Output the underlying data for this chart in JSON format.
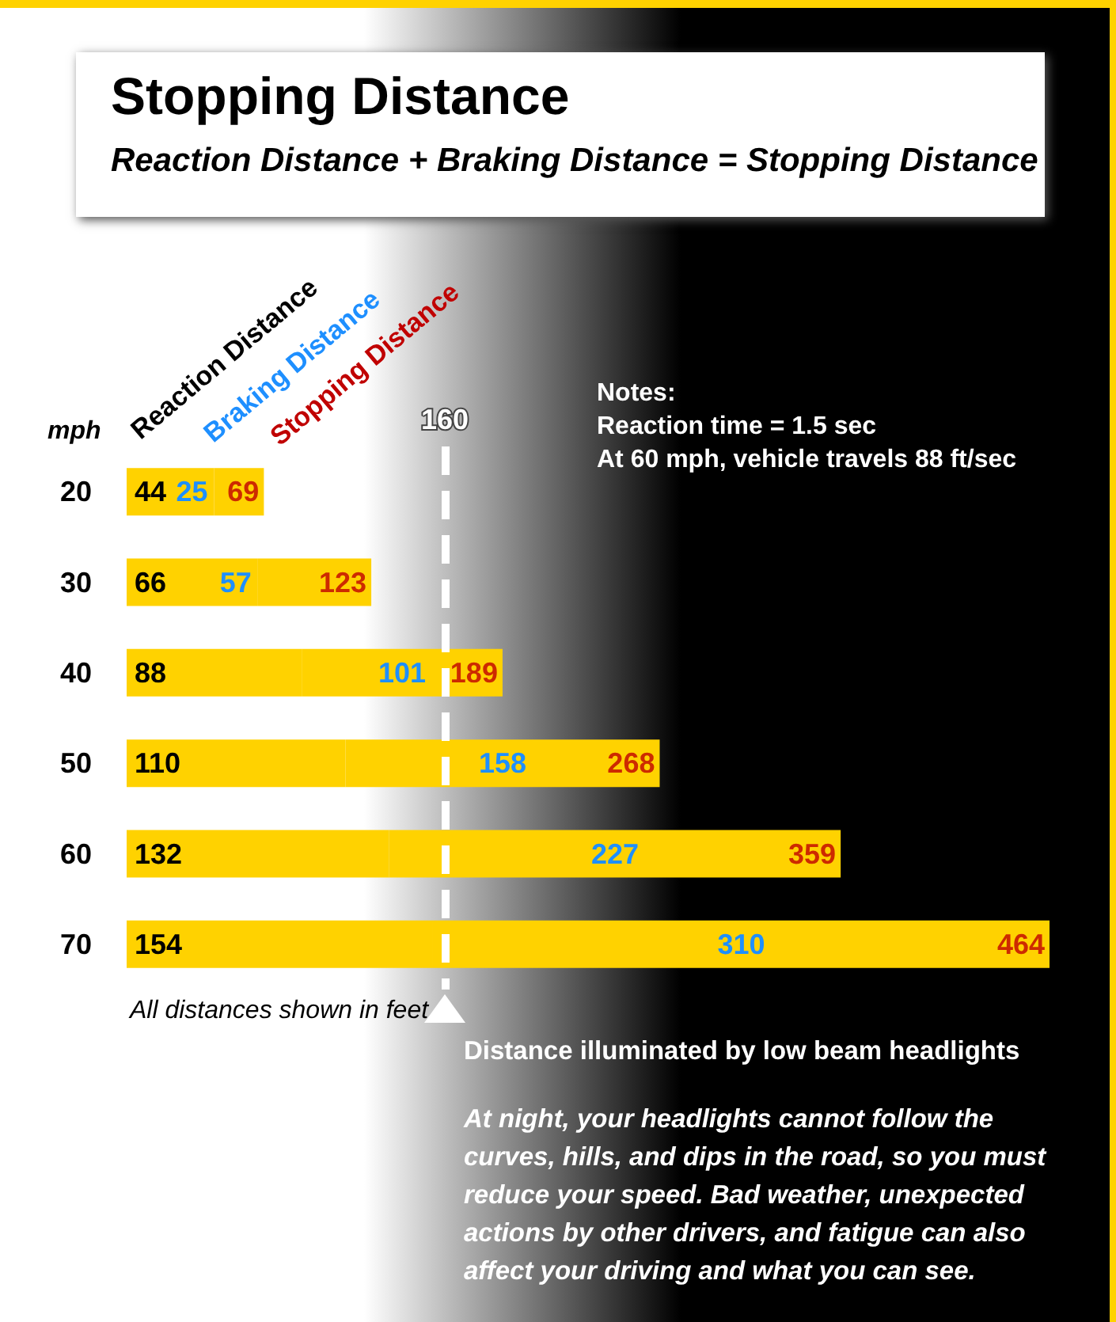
{
  "chart_data": {
    "type": "bar",
    "orientation": "horizontal",
    "stacked": true,
    "title": "Stopping Distance",
    "subtitle": "Reaction Distance + Braking Distance = Stopping Distance",
    "ylabel": "mph",
    "categories": [
      "20",
      "30",
      "40",
      "50",
      "60",
      "70"
    ],
    "series": [
      {
        "color": "#ffd200",
        "values": [
          44,
          66,
          88,
          110,
          132,
          154
        ]
      },
      {
        "color": "#ffd200",
        "values": [
          25,
          57,
          101,
          158,
          227,
          310
        ]
      }
    ],
    "data_labels": true,
    "totals": [
      "69",
      "123",
      "189",
      "268",
      "359",
      "464"
    ],
    "ref_lines": [
      {
        "axis": "x",
        "value": 160,
        "label": "160",
        "color": "#ffffff",
        "line_style": "dashed"
      }
    ],
    "annotations": [
      "Reaction Distance",
      "Braking Distance",
      "Stopping Distance",
      "Notes:\nReaction time = 1.5 sec\nAt 60 mph, vehicle travels 88 ft/sec",
      "All distances shown in feet",
      "Distance illuminated by low beam headlights",
      "At night, your headlights cannot follow the curves, hills, and dips in the road, so you must reduce your speed. Bad weather, unexpected actions by other drivers, and fatigue can also affect your driving and what you can see."
    ],
    "grid": false
  }
}
